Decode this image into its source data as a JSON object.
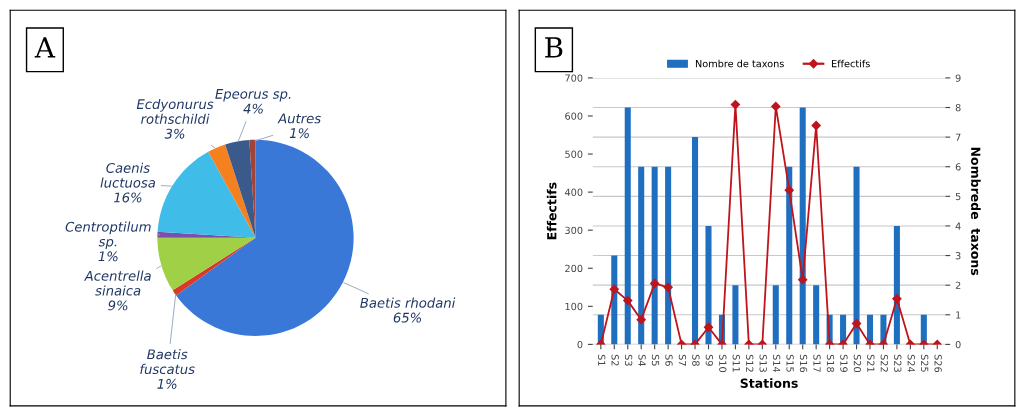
{
  "chart_data": [
    {
      "type": "pie",
      "annotations": [
        "A"
      ],
      "categories": [
        "Baetis rhodani",
        "Baetis\nfuscatus",
        "Acentrella\nsinaica",
        "Centroptilum\nsp.",
        "Caenis\nluctuosa",
        "Ecdyonurus\nrothschildi",
        "Epeorus sp.",
        "Autres"
      ],
      "values": [
        65,
        1,
        9,
        1,
        16,
        3,
        4,
        1
      ],
      "value_labels": [
        "65%",
        "1%",
        "9%",
        "1%",
        "16%",
        "3%",
        "4%",
        "1%"
      ],
      "colors": [
        "#3a78d8",
        "#d83a2a",
        "#9fd045",
        "#7a4fb0",
        "#3fbde8",
        "#f5801f",
        "#3b5a8c",
        "#a0443a"
      ]
    },
    {
      "type": "bar",
      "annotations": [
        "B"
      ],
      "xlabel": "Stations",
      "ylabel": "Effectifs",
      "y2label": "Nombrede  taxons",
      "categories": [
        "S1",
        "S2",
        "S3",
        "S4",
        "S5",
        "S6",
        "S7",
        "S8",
        "S9",
        "S10",
        "S11",
        "S12",
        "S13",
        "S14",
        "S15",
        "S16",
        "S17",
        "S18",
        "S19",
        "S20",
        "S21",
        "S22",
        "S23",
        "S24",
        "S25",
        "S26"
      ],
      "series": [
        {
          "name": "Nombre de taxons",
          "type": "bar",
          "axis": "y2",
          "color": "#1f6fc0",
          "values": [
            1,
            3,
            8,
            6,
            6,
            6,
            0,
            7,
            4,
            1,
            2,
            0,
            0,
            2,
            6,
            8,
            2,
            1,
            1,
            6,
            1,
            1,
            4,
            0,
            1,
            0
          ]
        },
        {
          "name": "Effectifs",
          "type": "line",
          "color": "#c0141c",
          "marker": "diamond",
          "values": [
            0,
            145,
            115,
            65,
            160,
            150,
            0,
            0,
            45,
            0,
            630,
            0,
            0,
            625,
            405,
            170,
            575,
            0,
            0,
            55,
            0,
            0,
            120,
            0,
            0,
            0
          ]
        }
      ],
      "ylim": [
        0,
        700
      ],
      "yticks": [
        0,
        100,
        200,
        300,
        400,
        500,
        600,
        700
      ],
      "y2lim": [
        0,
        9
      ],
      "y2ticks": [
        0,
        1,
        2,
        3,
        4,
        5,
        6,
        7,
        8,
        9
      ],
      "grid": "y",
      "legend": "top"
    }
  ]
}
